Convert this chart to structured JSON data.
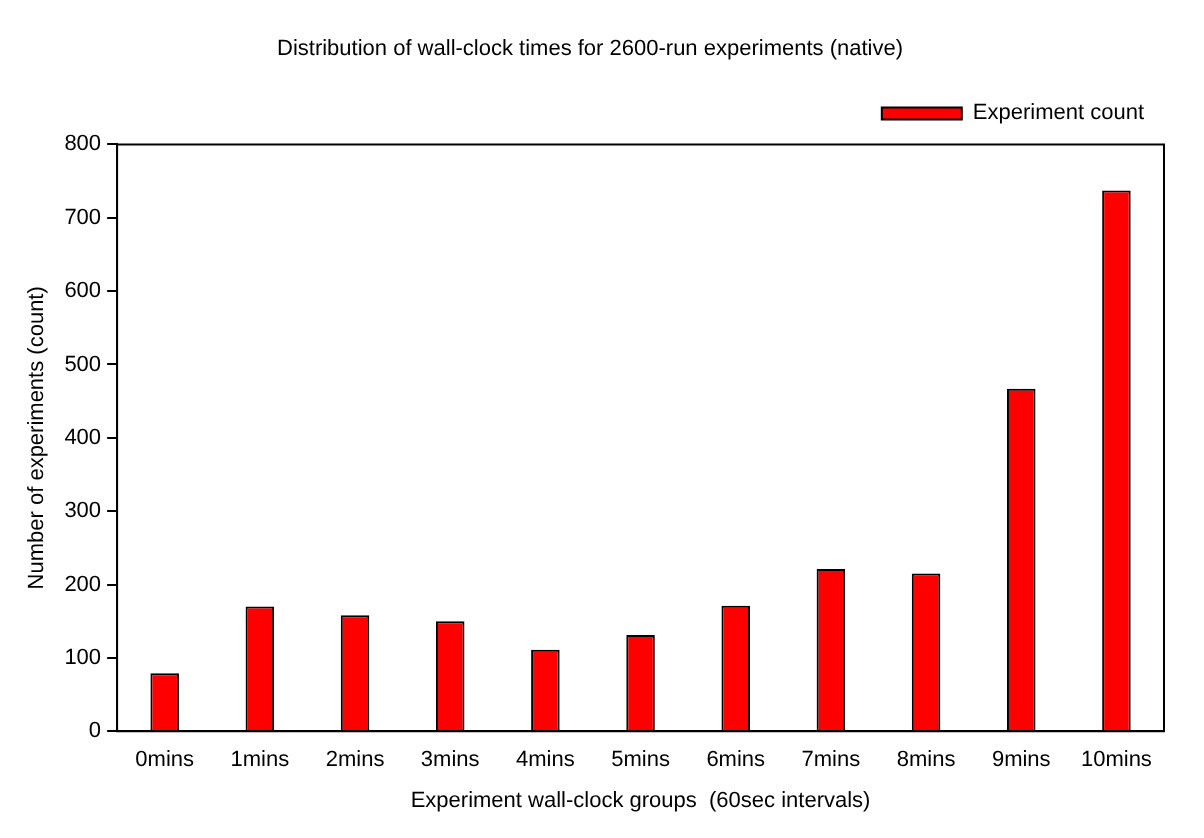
{
  "chart_data": {
    "type": "bar",
    "title": "Distribution of wall-clock times for 2600-run experiments (native)",
    "xlabel": "Experiment wall-clock groups  (60sec intervals)",
    "ylabel": "Number of experiments (count)",
    "categories": [
      "0mins",
      "1mins",
      "2mins",
      "3mins",
      "4mins",
      "5mins",
      "6mins",
      "7mins",
      "8mins",
      "9mins",
      "10mins"
    ],
    "series": [
      {
        "name": "Experiment count",
        "color": "#ff0000",
        "values": [
          79,
          170,
          158,
          150,
          111,
          131,
          171,
          221,
          215,
          467,
          737
        ]
      }
    ],
    "ylim": [
      0,
      800
    ],
    "yticks": [
      0,
      100,
      200,
      300,
      400,
      500,
      600,
      700,
      800
    ],
    "grid": false,
    "legend": "top right"
  }
}
